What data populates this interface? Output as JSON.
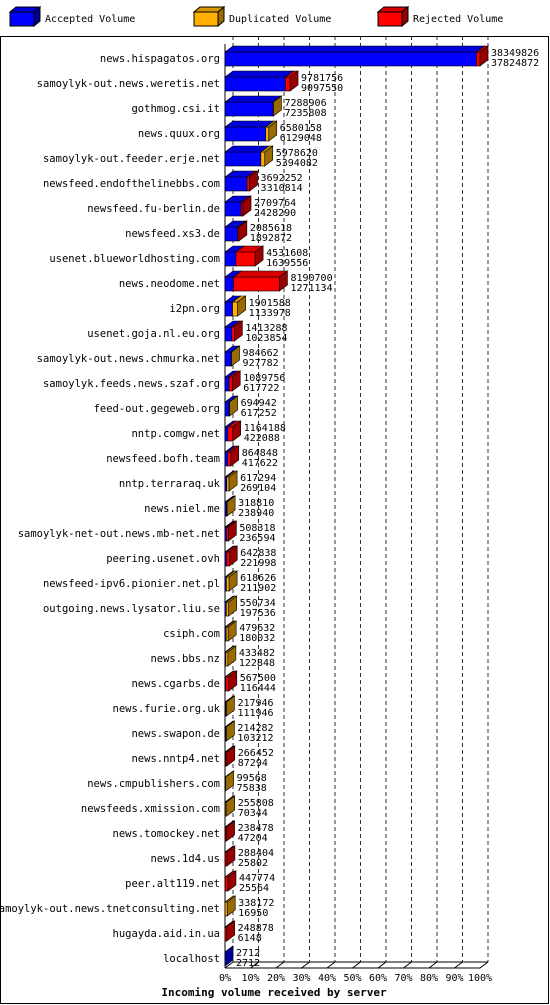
{
  "chart_data": {
    "type": "bar3d",
    "orientation": "horizontal",
    "x_label": "Incoming volume received by server",
    "categories": [
      "news.hispagatos.org",
      "samoylyk-out.news.weretis.net",
      "gothmog.csi.it",
      "news.quux.org",
      "samoylyk-out.feeder.erje.net",
      "newsfeed.endofthelinebbs.com",
      "newsfeed.fu-berlin.de",
      "newsfeed.xs3.de",
      "usenet.blueworldhosting.com",
      "news.neodome.net",
      "i2pn.org",
      "usenet.goja.nl.eu.org",
      "samoylyk-out.news.chmurka.net",
      "samoylyk.feeds.news.szaf.org",
      "feed-out.gegeweb.org",
      "nntp.comgw.net",
      "newsfeed.bofh.team",
      "nntp.terraraq.uk",
      "news.niel.me",
      "samoylyk-net-out.news.mb-net.net",
      "peering.usenet.ovh",
      "newsfeed-ipv6.pionier.net.pl",
      "outgoing.news.lysator.liu.se",
      "csiph.com",
      "news.bbs.nz",
      "news.cgarbs.de",
      "news.furie.org.uk",
      "news.swapon.de",
      "news.nntp4.net",
      "news.cmpublishers.com",
      "newsfeeds.xmission.com",
      "news.tomockey.net",
      "news.1d4.us",
      "peer.alt119.net",
      "samoylyk-out.news.tnetconsulting.net",
      "hugayda.aid.in.ua",
      "localhost"
    ],
    "totals": [
      38349826,
      9781756,
      7288906,
      6580158,
      5978620,
      3692252,
      2709764,
      2085618,
      4531608,
      8190700,
      1901588,
      1413288,
      984662,
      1089756,
      694942,
      1164188,
      864848,
      617294,
      318810,
      508318,
      642838,
      618626,
      550734,
      479632,
      433482,
      567500,
      217946,
      214282,
      266452,
      99568,
      255808,
      238478,
      288404,
      447774,
      338172,
      248878,
      2712
    ],
    "series": [
      {
        "name": "Accepted Volume",
        "color": "#0000ff",
        "values": [
          37824872,
          9097550,
          7235808,
          6129048,
          5394082,
          3310814,
          2428290,
          1892872,
          1639556,
          1271134,
          1133978,
          1023854,
          927782,
          617722,
          617252,
          422088,
          417622,
          269104,
          238940,
          236594,
          221998,
          211902,
          197536,
          180032,
          122848,
          116444,
          111946,
          103212,
          87294,
          75838,
          70344,
          47204,
          25802,
          25564,
          16950,
          6148,
          2712
        ]
      },
      {
        "name": "Duplicated Volume",
        "color": "#ffb000",
        "values": [
          0,
          0,
          53098,
          451110,
          584538,
          0,
          0,
          0,
          0,
          0,
          767610,
          0,
          56880,
          0,
          77690,
          0,
          0,
          348190,
          79870,
          0,
          0,
          406724,
          353198,
          299600,
          310634,
          0,
          106000,
          111070,
          0,
          23730,
          185464,
          0,
          0,
          0,
          321222,
          0,
          0
        ]
      },
      {
        "name": "Rejected Volume",
        "color": "#ff0000",
        "values": [
          524954,
          684206,
          0,
          0,
          0,
          381438,
          281474,
          192746,
          2892052,
          6919566,
          0,
          389434,
          0,
          472034,
          0,
          742100,
          447226,
          0,
          0,
          271724,
          420840,
          0,
          0,
          0,
          0,
          451056,
          0,
          0,
          179158,
          0,
          0,
          191274,
          262602,
          422210,
          0,
          242730,
          0
        ]
      }
    ],
    "xlim": [
      0,
      38349826
    ],
    "xticks": [
      {
        "value": 0,
        "label": "0%"
      },
      {
        "value": 3834982.6,
        "label": "10%"
      },
      {
        "value": 7669965.2,
        "label": "20%"
      },
      {
        "value": 11504947.8,
        "label": "30%"
      },
      {
        "value": 15339930.4,
        "label": "40%"
      },
      {
        "value": 19174913,
        "label": "50%"
      },
      {
        "value": 23009895.6,
        "label": "60%"
      },
      {
        "value": 26844878.2,
        "label": "70%"
      },
      {
        "value": 30679860.8,
        "label": "80%"
      },
      {
        "value": 34514843.4,
        "label": "90%"
      },
      {
        "value": 38349826,
        "label": "100%"
      }
    ],
    "grid": true
  }
}
